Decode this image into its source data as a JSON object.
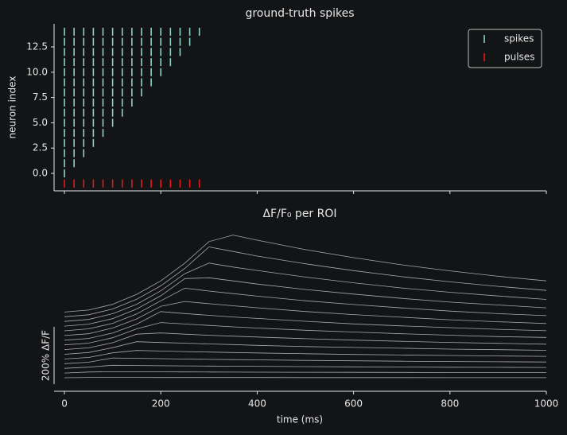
{
  "chart_data": [
    {
      "type": "raster",
      "title": "ground-truth spikes",
      "ylabel": "neuron index",
      "xlim": [
        -21.5,
        1000
      ],
      "xticks": [
        0,
        200,
        400,
        600,
        800,
        1000
      ],
      "ylim": [
        -1.73,
        14.78
      ],
      "yticks": [
        {
          "value": 0,
          "label": "0.0"
        },
        {
          "value": 2.5,
          "label": "2.5"
        },
        {
          "value": 5,
          "label": "5.0"
        },
        {
          "value": 7.5,
          "label": "7.5"
        },
        {
          "value": 10,
          "label": "10.0"
        },
        {
          "value": 12.5,
          "label": "12.5"
        }
      ],
      "legend": "upper right",
      "series": [
        {
          "name": "spikes",
          "color": "#8dd3c7",
          "x": [
            0,
            0,
            20,
            0,
            20,
            40,
            0,
            20,
            40,
            60,
            0,
            20,
            40,
            60,
            80,
            0,
            20,
            40,
            60,
            80,
            100,
            0,
            20,
            40,
            60,
            80,
            100,
            120,
            0,
            20,
            40,
            60,
            80,
            100,
            120,
            140,
            0,
            20,
            40,
            60,
            80,
            100,
            120,
            140,
            160,
            0,
            20,
            40,
            60,
            80,
            100,
            120,
            140,
            160,
            180,
            0,
            20,
            40,
            60,
            80,
            100,
            120,
            140,
            160,
            180,
            200,
            0,
            20,
            40,
            60,
            80,
            100,
            120,
            140,
            160,
            180,
            200,
            220,
            0,
            20,
            40,
            60,
            80,
            100,
            120,
            140,
            160,
            180,
            200,
            220,
            240,
            0,
            20,
            40,
            60,
            80,
            100,
            120,
            140,
            160,
            180,
            200,
            220,
            240,
            260,
            0,
            20,
            40,
            60,
            80,
            100,
            120,
            140,
            160,
            180,
            200,
            220,
            240,
            260,
            280
          ],
          "y": [
            0,
            1,
            1,
            2,
            2,
            2,
            3,
            3,
            3,
            3,
            4,
            4,
            4,
            4,
            4,
            5,
            5,
            5,
            5,
            5,
            5,
            6,
            6,
            6,
            6,
            6,
            6,
            6,
            7,
            7,
            7,
            7,
            7,
            7,
            7,
            7,
            8,
            8,
            8,
            8,
            8,
            8,
            8,
            8,
            8,
            9,
            9,
            9,
            9,
            9,
            9,
            9,
            9,
            9,
            9,
            10,
            10,
            10,
            10,
            10,
            10,
            10,
            10,
            10,
            10,
            10,
            11,
            11,
            11,
            11,
            11,
            11,
            11,
            11,
            11,
            11,
            11,
            11,
            12,
            12,
            12,
            12,
            12,
            12,
            12,
            12,
            12,
            12,
            12,
            12,
            12,
            13,
            13,
            13,
            13,
            13,
            13,
            13,
            13,
            13,
            13,
            13,
            13,
            13,
            13,
            14,
            14,
            14,
            14,
            14,
            14,
            14,
            14,
            14,
            14,
            14,
            14,
            14,
            14,
            14
          ]
        },
        {
          "name": "pulses",
          "color": "#e8191c",
          "x": [
            0,
            20,
            40,
            60,
            80,
            100,
            120,
            140,
            160,
            180,
            200,
            220,
            240,
            260,
            280
          ],
          "y": [
            -1,
            -1,
            -1,
            -1,
            -1,
            -1,
            -1,
            -1,
            -1,
            -1,
            -1,
            -1,
            -1,
            -1,
            -1
          ]
        }
      ]
    },
    {
      "type": "line",
      "title": "ΔF/F₀ per ROI",
      "xlabel": "time (ms)",
      "xlim": [
        -21.5,
        1000
      ],
      "xticks": [
        0,
        200,
        400,
        600,
        800,
        1000
      ],
      "color": "#a8a8a8",
      "scale_bar": {
        "value": 200,
        "label": "200% ΔF/F"
      },
      "x": [
        0,
        50,
        100,
        150,
        200,
        250,
        300,
        350,
        400,
        500,
        600,
        700,
        800,
        900,
        1000
      ],
      "series": [
        {
          "values": [
            0,
            1.2,
            1.1,
            1.0,
            0.96,
            0.9,
            0.84,
            0.78,
            0.73,
            0.63,
            0.55,
            0.48,
            0.41,
            0.36,
            0.32
          ]
        },
        {
          "values": [
            0,
            3.5,
            4.7,
            4.4,
            4.1,
            3.8,
            3.6,
            3.3,
            3.1,
            2.7,
            2.4,
            2.1,
            1.8,
            1.6,
            1.4
          ]
        },
        {
          "values": [
            0,
            4.3,
            10.7,
            10.0,
            9.3,
            8.7,
            8.1,
            7.6,
            7.1,
            6.1,
            5.3,
            4.7,
            4.0,
            3.5,
            3.1
          ]
        },
        {
          "values": [
            0,
            5.0,
            20,
            18.7,
            17.4,
            16.2,
            15.1,
            14.1,
            13.2,
            11.5,
            10.0,
            8.7,
            7.6,
            6.6,
            5.7
          ]
        },
        {
          "values": [
            0,
            5.4,
            21.5,
            29.7,
            27.7,
            25.9,
            24.1,
            22.5,
            21.0,
            18.3,
            15.9,
            13.9,
            12.1,
            10.5,
            9.1
          ]
        },
        {
          "values": [
            0,
            6,
            23,
            44,
            41,
            39,
            36,
            34,
            31,
            27,
            24,
            21,
            18,
            16,
            14
          ]
        },
        {
          "values": [
            0,
            6,
            24,
            54,
            58,
            54,
            50,
            47,
            44,
            38,
            33,
            29,
            25,
            22,
            19
          ]
        },
        {
          "values": [
            0,
            6,
            25,
            56,
            78,
            73,
            68,
            63,
            59,
            51,
            45,
            39,
            34,
            29,
            26
          ]
        },
        {
          "values": [
            0,
            6,
            25,
            56,
            100,
            93,
            87,
            81,
            76,
            66,
            57,
            50,
            44,
            38,
            33
          ]
        },
        {
          "values": [
            0,
            6,
            26,
            58,
            102,
            119,
            111,
            104,
            97,
            84,
            73,
            64,
            55,
            48,
            42
          ]
        },
        {
          "values": [
            0,
            7,
            26,
            59,
            105,
            149,
            139,
            130,
            121,
            105,
            92,
            80,
            69,
            60,
            53
          ]
        },
        {
          "values": [
            0,
            7,
            26,
            60,
            106,
            166,
            169,
            158,
            147,
            128,
            112,
            97,
            84,
            74,
            64
          ]
        },
        {
          "values": [
            0,
            7,
            27,
            60,
            107,
            167,
            204,
            190,
            178,
            155,
            135,
            117,
            102,
            89,
            77
          ]
        },
        {
          "values": [
            0,
            7,
            27,
            61,
            108,
            169,
            244,
            228,
            212,
            185,
            161,
            140,
            122,
            106,
            92
          ]
        },
        {
          "values": [
            0,
            7,
            27,
            62,
            109,
            171,
            246,
            269,
            251,
            218,
            190,
            165,
            144,
            125,
            109
          ]
        }
      ]
    }
  ]
}
